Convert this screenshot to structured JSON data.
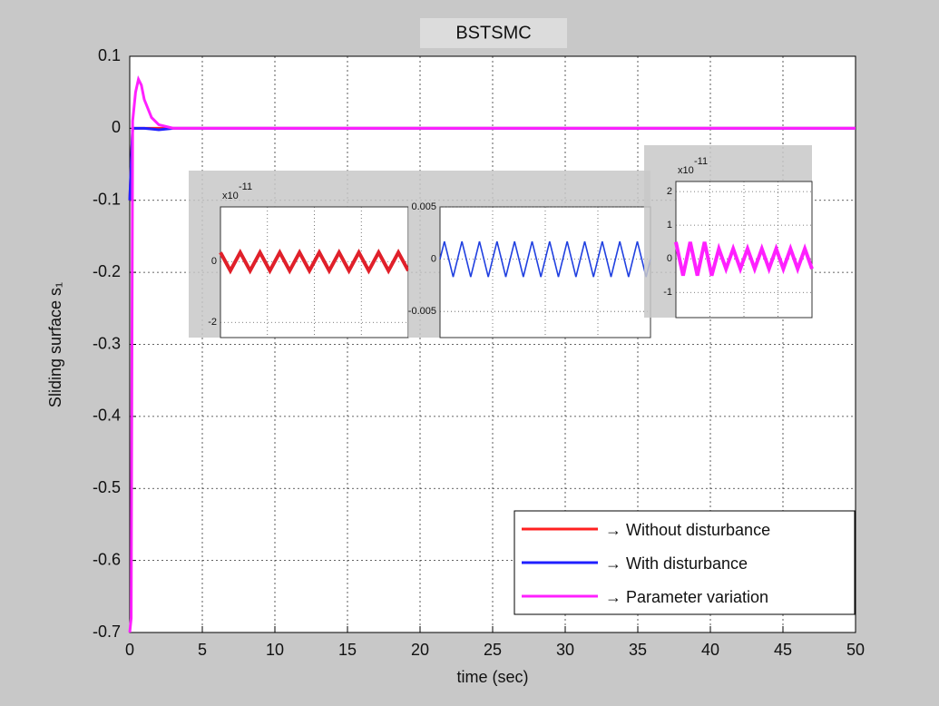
{
  "chart_data": {
    "type": "line",
    "title": "BSTSMC",
    "xlabel": "time (sec)",
    "ylabel": "Sliding surface s₁",
    "x": [
      0,
      0.1,
      0.2,
      0.4,
      0.6,
      0.8,
      1,
      1.5,
      2,
      3,
      5,
      10,
      20,
      30,
      40,
      50
    ],
    "series": [
      {
        "name": "→ Without disturbance",
        "color": "#ff2020",
        "values": [
          -0.1,
          -0.05,
          0,
          0,
          0,
          0,
          0,
          0,
          0,
          0,
          0,
          0,
          0,
          0,
          0,
          0
        ]
      },
      {
        "name": "→ With disturbance",
        "color": "#2020ff",
        "values": [
          -0.1,
          -0.05,
          0,
          0,
          0,
          0,
          0,
          -0.001,
          -0.002,
          0,
          0,
          0,
          0,
          0,
          0,
          0
        ]
      },
      {
        "name": "→ Parameter variation",
        "color": "#ff20ff",
        "values": [
          -0.7,
          -0.68,
          0.01,
          0.05,
          0.068,
          0.06,
          0.04,
          0.015,
          0.005,
          0,
          0,
          0,
          0,
          0,
          0,
          0
        ]
      }
    ],
    "xlim": [
      0,
      50
    ],
    "xticks": [
      0,
      5,
      10,
      15,
      20,
      25,
      30,
      35,
      40,
      45,
      50
    ],
    "ylim": [
      -0.7,
      0.1
    ],
    "yticks": [
      0.1,
      0,
      -0.1,
      -0.2,
      -0.3,
      -0.4,
      -0.5,
      -0.6,
      -0.7
    ],
    "grid": true,
    "legend": "lower right",
    "insets": [
      {
        "exponent": "x10",
        "exponent_power": "-11",
        "ylim": [
          -2.5,
          1.8
        ],
        "yticks": [
          0,
          -2
        ],
        "color": "#e0202a",
        "values": [
          0.3,
          -0.3,
          0.3,
          -0.3,
          0.3,
          -0.3,
          0.3,
          -0.3,
          0.3,
          -0.3,
          0.3,
          -0.3,
          0.3,
          -0.3,
          0.3,
          -0.3,
          0.3,
          -0.3,
          0.3,
          -0.3
        ]
      },
      {
        "ylim": [
          -0.0075,
          0.005
        ],
        "yticks": [
          0.005,
          0,
          -0.005
        ],
        "color": "#2040e0",
        "values": [
          0,
          0.0017,
          0,
          -0.0017,
          0,
          0.0017,
          0,
          -0.0017,
          0,
          0.0017,
          0,
          -0.0017,
          0,
          0.0017,
          0,
          -0.0017,
          0,
          0.0017,
          0,
          -0.0017,
          0,
          0.0017,
          0,
          -0.0017,
          0,
          0.0017,
          0,
          -0.0017,
          0,
          0.0017,
          0,
          -0.0017,
          0,
          0.0017,
          0,
          -0.0017,
          0,
          0.0017,
          0,
          -0.0017,
          0,
          0.0017,
          0,
          -0.0017,
          0,
          0.0017,
          0,
          -0.0017,
          0
        ]
      },
      {
        "exponent": "x10",
        "exponent_power": "-11",
        "ylim": [
          -1.75,
          2.3
        ],
        "yticks": [
          2,
          1,
          0,
          -1
        ],
        "color": "#ff20ff",
        "values": [
          0.5,
          -0.5,
          0.5,
          -0.5,
          0.5,
          -0.5,
          0.3,
          -0.3,
          0.3,
          -0.3,
          0.3,
          -0.3,
          0.3,
          -0.3,
          0.3,
          -0.3,
          0.3,
          -0.3,
          0.3,
          -0.3
        ]
      }
    ]
  }
}
